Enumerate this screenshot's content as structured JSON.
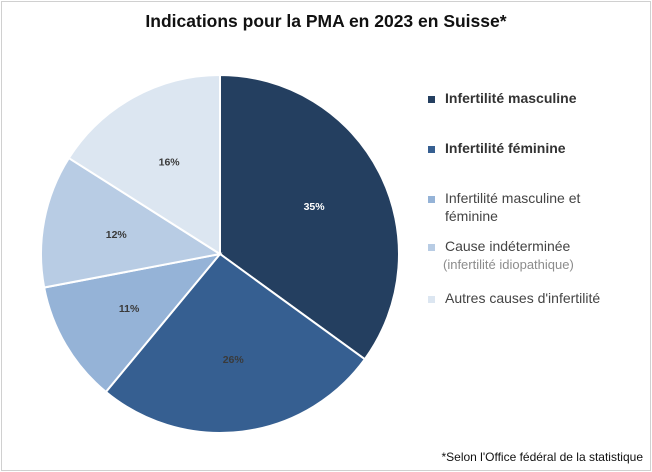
{
  "chart_data": {
    "type": "pie",
    "title": "Indications pour la PMA en 2023 en Suisse*",
    "categories": [
      "Infertilité masculine",
      "Infertilité féminine",
      "Infertilité masculine et féminine",
      "Cause indéterminée (infertilité idiopathique)",
      "Autres causes d'infertilité"
    ],
    "values": [
      35,
      26,
      11,
      12,
      16
    ],
    "value_labels": [
      "35%",
      "26%",
      "11%",
      "12%",
      "16%"
    ],
    "colors": [
      "#243f60",
      "#365f91",
      "#95b3d7",
      "#b8cce4",
      "#dce6f1"
    ],
    "label_colors": [
      "#ffffff",
      "#3a3a3a",
      "#3a3a3a",
      "#3a3a3a",
      "#3a3a3a"
    ],
    "legend_placement": "right",
    "legend": [
      {
        "lines": [
          "Infertilité masculine"
        ],
        "sub": "",
        "bold": true
      },
      {
        "lines": [
          "Infertilité féminine"
        ],
        "sub": "",
        "bold": true
      },
      {
        "lines": [
          "Infertilité masculine et",
          "féminine"
        ],
        "sub": "",
        "bold": false
      },
      {
        "lines": [
          "Cause indéterminée"
        ],
        "sub": "(infertilité idiopathique)",
        "bold": false
      },
      {
        "lines": [
          "Autres causes d'infertilité"
        ],
        "sub": "",
        "bold": false
      }
    ]
  },
  "footnote": "*Selon l'Office fédéral de la statistique"
}
